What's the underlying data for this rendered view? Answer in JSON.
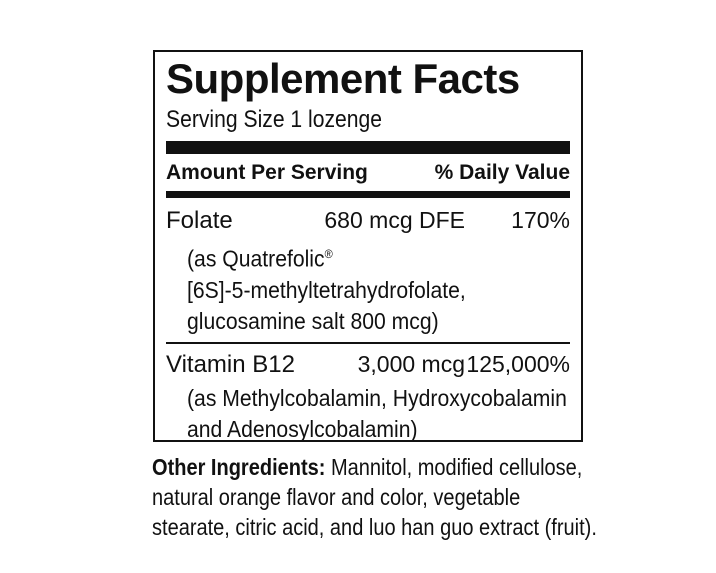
{
  "panel": {
    "title": "Supplement Facts",
    "serving_size": "Serving Size 1 lozenge",
    "columns": {
      "amount_header": "Amount Per Serving",
      "daily_value_header": "% Daily Value"
    },
    "nutrients": [
      {
        "name": "Folate",
        "amount": "680 mcg DFE",
        "daily_value": "170%",
        "detail_line1": "(as Quatrefolic",
        "detail_line1_sup": "®",
        "detail_line2": "[6S]-5-methyltetrahydrofolate,",
        "detail_line3": "glucosamine salt 800 mcg)"
      },
      {
        "name": "Vitamin B12",
        "amount": "3,000 mcg",
        "daily_value": "125,000%",
        "detail_line1": "(as Methylcobalamin, Hydroxycobalamin",
        "detail_line2": "and Adenosylcobalamin)"
      }
    ]
  },
  "other_ingredients": {
    "label": "Other Ingredients:",
    "line1_rest": " Mannitol, modified cellulose,",
    "line2": "natural orange flavor and color, vegetable",
    "line3": "stearate, citric acid, and luo han guo extract (fruit)."
  },
  "colors": {
    "text": "#111111",
    "background": "#ffffff"
  }
}
